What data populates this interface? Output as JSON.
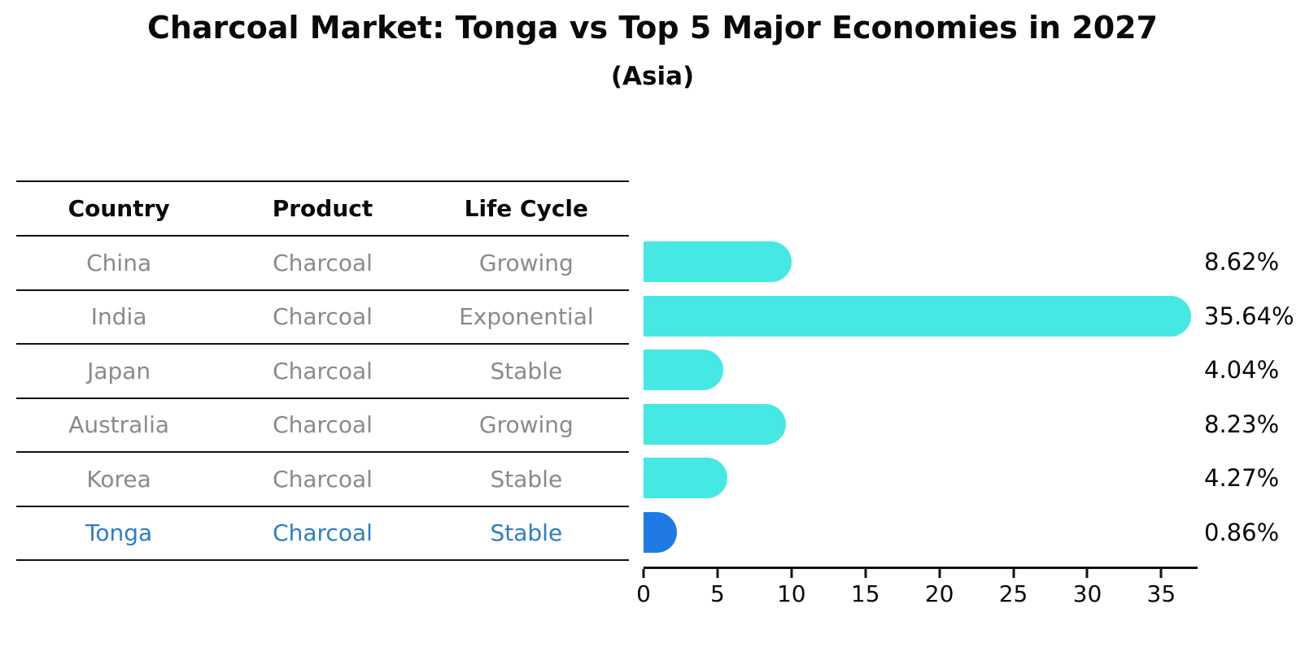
{
  "title": "Charcoal Market: Tonga vs Top 5 Major Economies in 2027",
  "subtitle": "(Asia)",
  "table": {
    "headers": {
      "country": "Country",
      "product": "Product",
      "life_cycle": "Life Cycle"
    },
    "rows": [
      {
        "country": "China",
        "product": "Charcoal",
        "life_cycle": "Growing",
        "highlight": false
      },
      {
        "country": "India",
        "product": "Charcoal",
        "life_cycle": "Exponential",
        "highlight": false
      },
      {
        "country": "Japan",
        "product": "Charcoal",
        "life_cycle": "Stable",
        "highlight": false
      },
      {
        "country": "Australia",
        "product": "Charcoal",
        "life_cycle": "Growing",
        "highlight": false
      },
      {
        "country": "Korea",
        "product": "Charcoal",
        "life_cycle": "Stable",
        "highlight": false
      },
      {
        "country": "Tonga",
        "product": "Charcoal",
        "life_cycle": "Stable",
        "highlight": true
      }
    ]
  },
  "chart_data": {
    "type": "bar",
    "orientation": "horizontal",
    "title": "Charcoal Market: Tonga vs Top 5 Major Economies in 2027",
    "subtitle": "(Asia)",
    "categories": [
      "China",
      "India",
      "Japan",
      "Australia",
      "Korea",
      "Tonga"
    ],
    "values": [
      8.62,
      35.64,
      4.04,
      8.23,
      4.27,
      0.86
    ],
    "value_labels": [
      "8.62%",
      "35.64%",
      "4.04%",
      "8.23%",
      "4.27%",
      "0.86%"
    ],
    "unit": "%",
    "xticks": [
      "0",
      "5",
      "10",
      "15",
      "20",
      "25",
      "30",
      "35"
    ],
    "xtick_values": [
      0,
      5,
      10,
      15,
      20,
      25,
      30,
      35
    ],
    "xlim": [
      0,
      37.4
    ],
    "grid": false,
    "legend": false,
    "bar_color": "#45e8e2",
    "highlight_color": "#1f7be3",
    "highlight_index": 5
  },
  "colors": {
    "bar_cyan": "#45e8e2",
    "bar_blue": "#1f7be3",
    "highlight_text_blue": "#2f7dc3",
    "row_text_gray": "#8a8a8a",
    "text_black": "#0a0a0a"
  }
}
